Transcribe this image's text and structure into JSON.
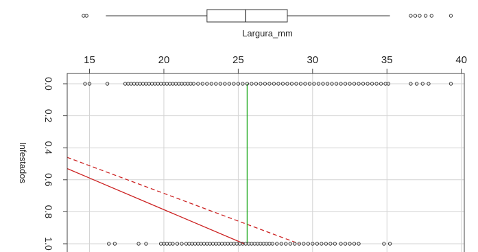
{
  "chart_data": {
    "type": "scatter",
    "xlabel": "Largura_mm",
    "ylabel": "Infestados",
    "xlim": [
      13.5,
      40.2
    ],
    "ylim": [
      0,
      1
    ],
    "y_axis_reversed": true,
    "x_ticks": [
      "15",
      "20",
      "25",
      "30",
      "35",
      "40"
    ],
    "y_ticks": [
      "0.0",
      "0.2",
      "0.4",
      "0.6",
      "0.8",
      "1.0"
    ],
    "grid": true,
    "colors": {
      "points": "#333333",
      "grid": "#d3d3d3",
      "fit_solid": "#cc2222",
      "fit_dashed": "#cc2222",
      "vertical_line": "#22aa22",
      "boxplot": "#333333"
    },
    "boxplot": {
      "variable": "Largura_mm",
      "whisker_low": 16.1,
      "q1": 22.9,
      "median": 25.5,
      "q3": 28.3,
      "whisker_high": 35.2,
      "outliers": [
        14.6,
        14.8,
        36.6,
        36.9,
        37.2,
        37.6,
        38.0,
        39.3
      ]
    },
    "points_y0": [
      14.7,
      15.0,
      16.2,
      17.4,
      17.6,
      17.8,
      18.0,
      18.2,
      18.4,
      18.6,
      18.8,
      19.0,
      19.2,
      19.4,
      19.6,
      19.8,
      20.0,
      20.2,
      20.4,
      20.6,
      20.8,
      21.0,
      21.2,
      21.4,
      21.6,
      21.8,
      22.0,
      22.3,
      22.6,
      22.9,
      23.2,
      23.5,
      23.8,
      24.1,
      24.4,
      24.7,
      25.0,
      25.3,
      25.6,
      25.9,
      26.2,
      26.5,
      26.8,
      27.1,
      27.4,
      27.7,
      28.0,
      28.3,
      28.6,
      28.9,
      29.2,
      29.5,
      29.8,
      30.1,
      30.4,
      30.7,
      31.0,
      31.3,
      31.6,
      31.9,
      32.2,
      32.5,
      32.8,
      33.1,
      33.4,
      33.7,
      34.0,
      34.3,
      34.6,
      34.9,
      35.1,
      36.6,
      37.0,
      37.4,
      37.8,
      39.3
    ],
    "points_y1": [
      16.3,
      16.7,
      18.3,
      18.8,
      19.8,
      20.0,
      20.2,
      20.4,
      20.6,
      20.9,
      21.2,
      21.5,
      21.7,
      21.9,
      22.1,
      22.3,
      22.5,
      22.7,
      22.9,
      23.1,
      23.3,
      23.5,
      23.7,
      23.9,
      24.1,
      24.3,
      24.5,
      24.7,
      24.9,
      25.1,
      25.3,
      25.5,
      25.7,
      25.9,
      26.1,
      26.3,
      26.5,
      26.7,
      26.9,
      27.1,
      27.3,
      27.6,
      27.9,
      28.2,
      28.5,
      28.8,
      29.1,
      29.4,
      29.7,
      30.0,
      30.3,
      30.6,
      30.9,
      31.2,
      31.5,
      31.9,
      32.2,
      32.5,
      32.8,
      33.1,
      34.8,
      35.2
    ],
    "lines": [
      {
        "style": "solid",
        "color": "#cc2222",
        "x": [
          13.5,
          25.4
        ],
        "y": [
          0.53,
          1.0
        ]
      },
      {
        "style": "dashed",
        "color": "#cc2222",
        "x": [
          13.5,
          29.1
        ],
        "y": [
          0.46,
          1.0
        ]
      },
      {
        "style": "solid",
        "color": "#22aa22",
        "x": [
          25.6,
          25.6
        ],
        "y": [
          0.0,
          1.0
        ]
      }
    ]
  }
}
